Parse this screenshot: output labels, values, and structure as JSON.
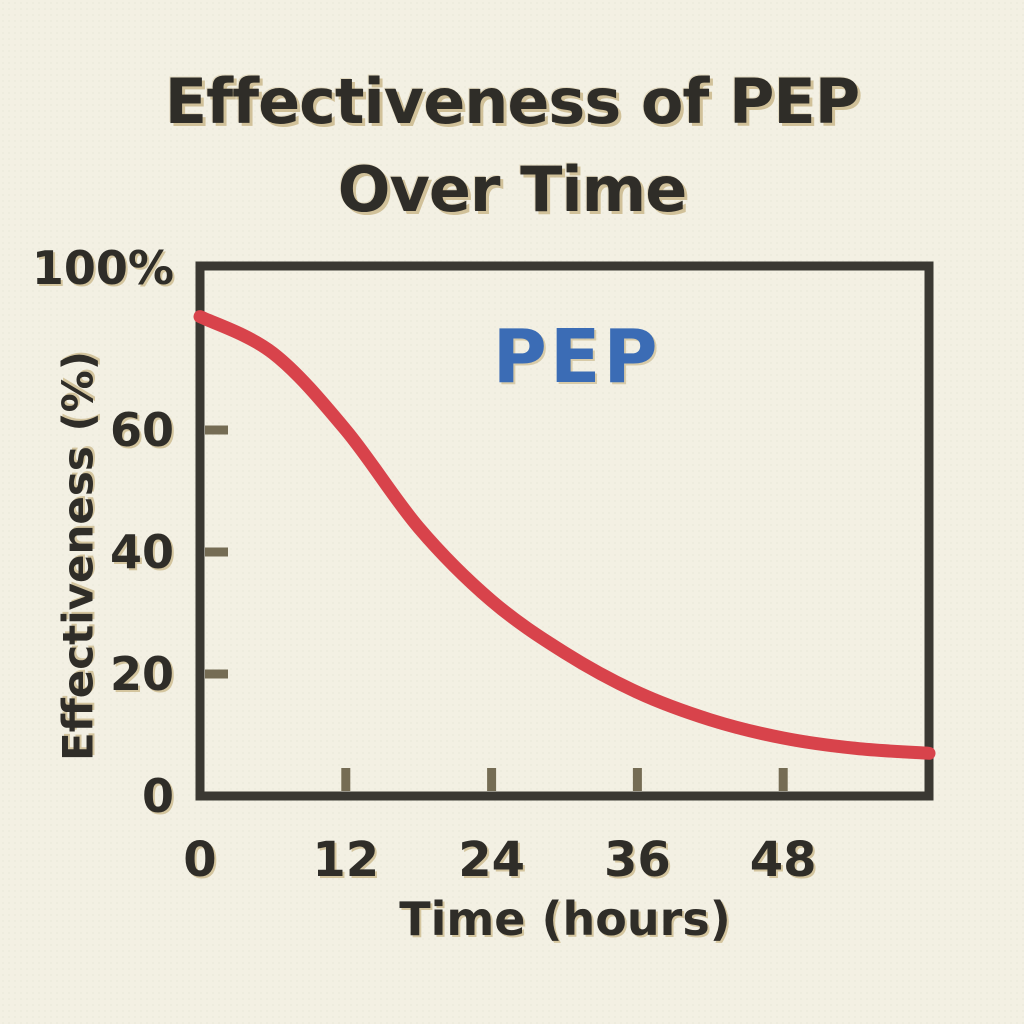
{
  "title": {
    "line1": "Effectiveness of PEP",
    "line2": "Over Time"
  },
  "colors": {
    "background": "#f3f0e3",
    "axis": "#3a3832",
    "tick_mark": "#756c54",
    "curve": "#d8434b",
    "text": "#2f2d28",
    "series_label": "#3b6cb5",
    "halo": "#c6b280"
  },
  "chart_data": {
    "type": "line",
    "title": "Effectiveness of PEP Over Time",
    "xlabel": "Time (hours)",
    "ylabel": "Effectiveness (%)",
    "xlim": [
      0,
      60
    ],
    "ylim": [
      0,
      100
    ],
    "grid": false,
    "legend_position": "none",
    "x_ticks": [
      {
        "label": "0",
        "value": 0
      },
      {
        "label": "12",
        "value": 12
      },
      {
        "label": "24",
        "value": 24
      },
      {
        "label": "36",
        "value": 36
      },
      {
        "label": "48",
        "value": 48
      }
    ],
    "y_ticks": [
      {
        "label": "100%",
        "value": 100
      },
      {
        "label": "60",
        "value": 60
      },
      {
        "label": "40",
        "value": 40
      },
      {
        "label": "20",
        "value": 20
      },
      {
        "label": "0",
        "value": 0
      }
    ],
    "x_tick_marks": [
      12,
      24,
      36,
      48
    ],
    "y_tick_marks": [
      60,
      40,
      20
    ],
    "series": [
      {
        "name": "PEP",
        "color": "#d8434b",
        "x": [
          0,
          6,
          12,
          18,
          24,
          30,
          36,
          42,
          48,
          54,
          60
        ],
        "values": [
          88,
          79,
          60,
          44,
          32,
          23.5,
          17,
          12.5,
          9.5,
          7.8,
          7
        ]
      }
    ],
    "annotations": [
      {
        "text": "PEP",
        "x": 31,
        "y": 78,
        "color": "#3b6cb5"
      }
    ]
  }
}
